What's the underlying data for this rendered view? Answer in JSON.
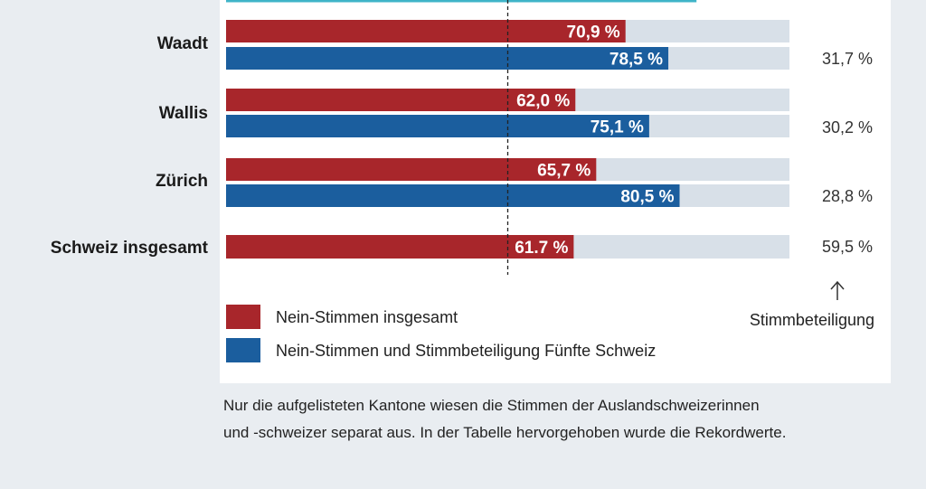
{
  "chart_data": {
    "type": "bar",
    "orientation": "horizontal",
    "categories": [
      "Waadt",
      "Wallis",
      "Zürich",
      "Schweiz insgesamt"
    ],
    "series": [
      {
        "name": "Nein-Stimmen insgesamt",
        "color": "#a8262b",
        "values": [
          70.9,
          62.0,
          65.7,
          61.7
        ],
        "labels": [
          "70,9 %",
          "62,0 %",
          "65,7 %",
          "61.7 %"
        ]
      },
      {
        "name": "Nein-Stimmen und Stimmbeteiligung Fünfte Schweiz",
        "color": "#1b5e9e",
        "values": [
          78.5,
          75.1,
          80.5,
          null
        ],
        "labels": [
          "78,5 %",
          "75,1 %",
          "80,5 %",
          null
        ]
      }
    ],
    "turnout": {
      "values": [
        31.7,
        30.2,
        28.8,
        59.5
      ],
      "labels": [
        "31,7 %",
        "30,2 %",
        "28,8 %",
        "59,5 %"
      ],
      "title": "Stimmbeteiligung",
      "arrow": "up-arrow-icon"
    },
    "xlim": [
      0,
      100
    ],
    "reference_line": 50,
    "track_color": "#d8e0e8",
    "legend": [
      {
        "label": "Nein-Stimmen insgesamt",
        "color": "#a8262b"
      },
      {
        "label": "Nein-Stimmen und Stimmbeteiligung Fünfte Schweiz",
        "color": "#1b5e9e"
      }
    ],
    "legend_placement": "bottom-left",
    "top_line_color": "#3fb4c8"
  },
  "footnote": {
    "line1": "Nur die aufgelisteten Kantone wiesen die Stimmen der Auslandschweizerinnen",
    "line2": "und -schweizer separat aus. In der Tabelle hervorgehoben wurde die Rekordwerte."
  }
}
